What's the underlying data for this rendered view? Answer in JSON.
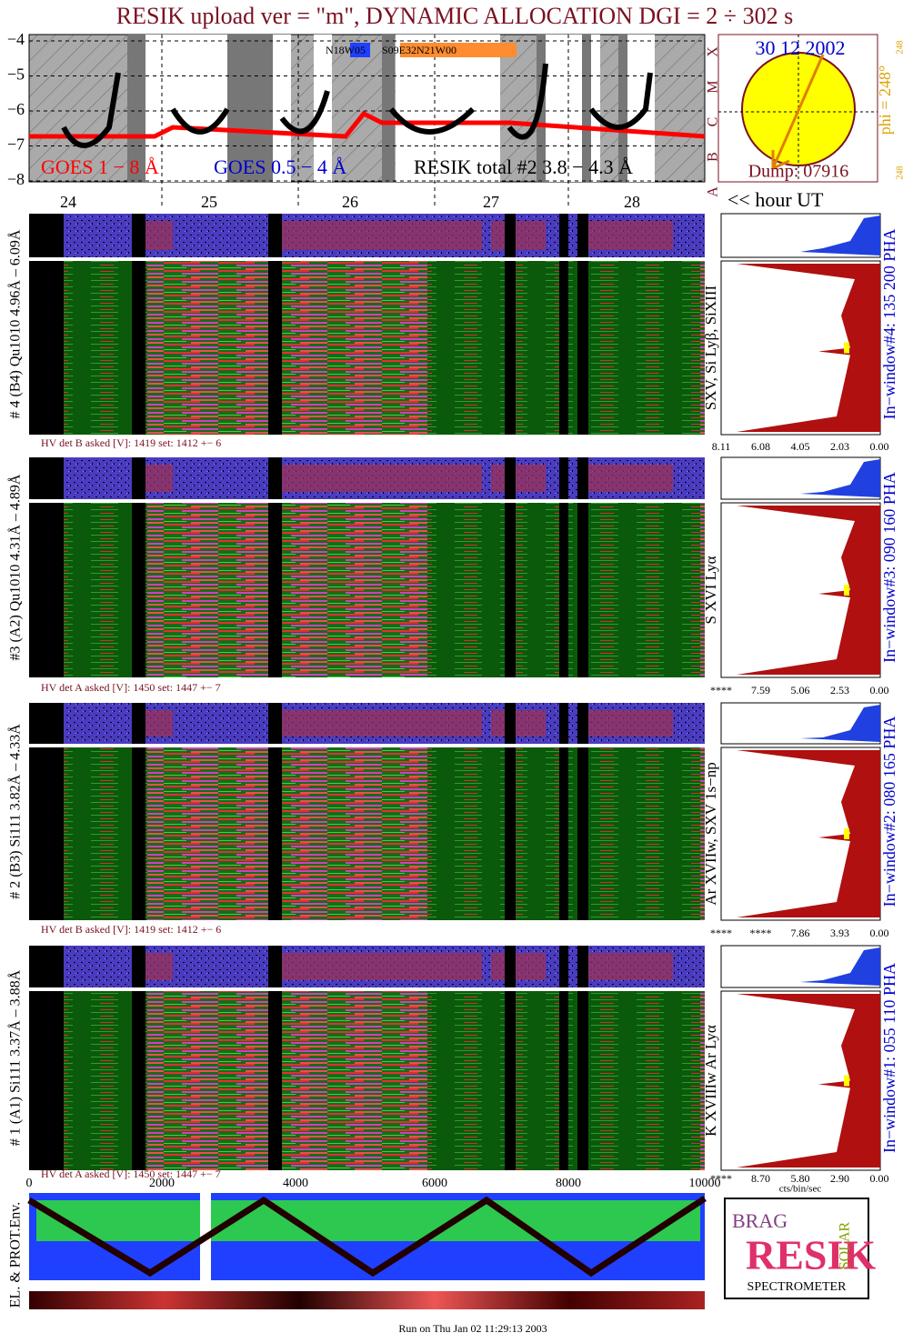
{
  "title": "RESIK upload ver = \"m\", DYNAMIC ALLOCATION  DGI =   2 ÷ 302 s",
  "goes": {
    "yticks": [
      "−4",
      "−5",
      "−6",
      "−7",
      "−8"
    ],
    "class_letters": [
      "X",
      "M",
      "C",
      "B",
      "A"
    ],
    "regions": [
      "N18W05",
      "S09E32N21W00"
    ],
    "legend": [
      "GOES 1 − 8 Å",
      "GOES 0.5 − 4 Å",
      "RESIK total #2  3.8 − 4.3 Å"
    ]
  },
  "sun": {
    "date": "30 12 2002",
    "phi": "phi = 248°",
    "phi_small": [
      "248",
      "248"
    ],
    "dump": "Dump: 07916"
  },
  "hours": {
    "ticks": [
      "24",
      "25",
      "26",
      "27",
      "28"
    ],
    "label": "<< hour UT"
  },
  "panels": [
    {
      "label": "# 4 (B4) Qu1010 4.96Å – 6.09Å",
      "lines": "SXV, Si Lyβ, SiXIII",
      "hv": "HV det B asked [V]:  1419 set:  1412 +−   6",
      "window": "In−window#4:  135 200 PHA",
      "ticks": [
        "8.11",
        "6.08",
        "4.05",
        "2.03",
        "0.00"
      ]
    },
    {
      "label": "#3 (A2) Qu1010 4.31Å – 4.89Å",
      "lines": "S XVI Lyα",
      "hv": "HV det A asked [V]:  1450 set:  1447 +−   7",
      "window": "In−window#3:  090 160 PHA",
      "ticks": [
        "****",
        "7.59",
        "5.06",
        "2.53",
        "0.00"
      ]
    },
    {
      "label": "# 2 (B3) Si111  3.82Å – 4.33Å",
      "lines": "Ar XVIIw, SXV 1s−np",
      "hv": "HV det B asked [V]:  1419 set:  1412 +−   6",
      "window": "In−window#2:  080 165 PHA",
      "ticks": [
        "****",
        "****",
        "7.86",
        "3.93",
        "0.00"
      ]
    },
    {
      "label": "# 1 (A1) Si111  3.37Å – 3.88Å",
      "lines": "K XVIIIw  Ar Lyα",
      "hv": "HV det A asked [V]:  1450 set:  1447 +−   7",
      "window": "In−window#1:  055 110 PHA",
      "ticks": [
        "****",
        "8.70",
        "5.80",
        "2.90",
        "0.00"
      ]
    }
  ],
  "hist_unit": "cts/bin/sec",
  "env": {
    "label": "EL. & PROT.Env.",
    "xticks": [
      "0",
      "2000",
      "4000",
      "6000",
      "8000",
      "10000"
    ]
  },
  "logo": {
    "words": [
      "BRAG",
      "RESIK",
      "SOLAR"
    ],
    "caption": "SPECTROMETER"
  },
  "footer": "Run on Thu Jan 02 11:29:13 2003"
}
